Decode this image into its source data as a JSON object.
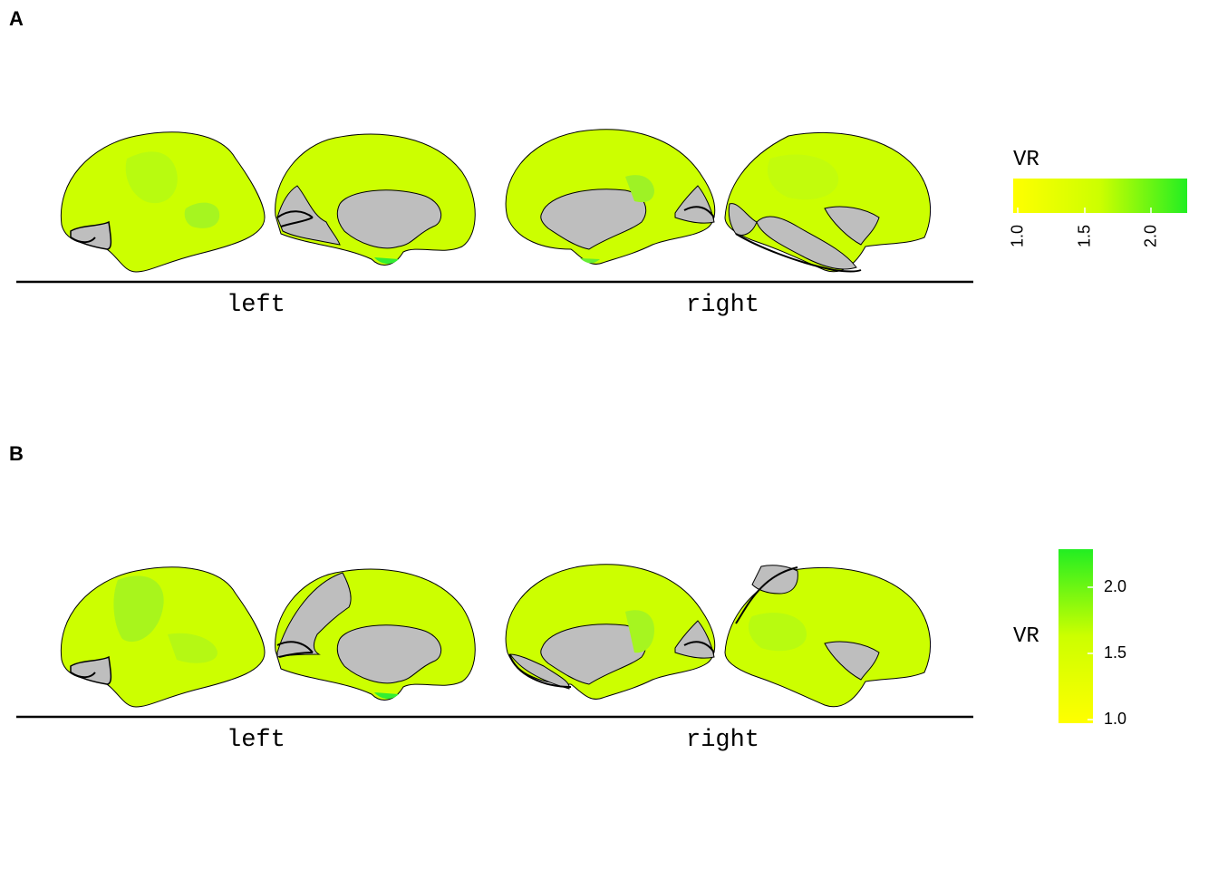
{
  "panels": [
    {
      "letter": "A",
      "hemispheres": {
        "left": "left",
        "right": "right"
      },
      "legend": {
        "title": "VR",
        "orientation": "horizontal",
        "ticks": [
          "1.0",
          "1.5",
          "2.0"
        ],
        "range": [
          1.0,
          2.3
        ]
      }
    },
    {
      "letter": "B",
      "hemispheres": {
        "left": "left",
        "right": "right"
      },
      "legend": {
        "title": "VR",
        "orientation": "vertical",
        "ticks": [
          "1.0",
          "1.5",
          "2.0"
        ],
        "range": [
          1.0,
          2.3
        ]
      }
    }
  ],
  "colors": {
    "scale_low": "#ffff00",
    "scale_mid": "#ccff00",
    "scale_high": "#22ee22",
    "missing": "#bebebe",
    "outline": "#000000"
  }
}
